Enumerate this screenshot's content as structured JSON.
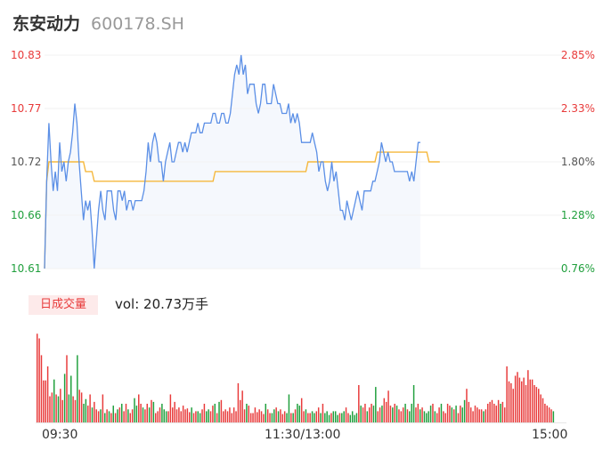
{
  "stock": {
    "name": "东安动力",
    "code": "600178.SH"
  },
  "price_labels_left": [
    "10.83",
    "10.77",
    "10.72",
    "10.66",
    "10.61"
  ],
  "pct_labels_right": [
    "2.85%",
    "2.33%",
    "1.80%",
    "1.28%",
    "0.76%"
  ],
  "volume_tab": "日成交量",
  "volume_text": "vol: 20.73万手",
  "time_labels": [
    "09:30",
    "11:30/13:00",
    "15:00"
  ],
  "colors": {
    "up": "#e83a3a",
    "down": "#1f9f3c",
    "price_line": "#5b8fe6",
    "avg_line": "#f5b83d",
    "area": "#f5f8fd"
  },
  "chart_data": [
    {
      "type": "line",
      "ylim": [
        10.61,
        10.83
      ],
      "xlim": [
        0,
        240
      ],
      "series": [
        {
          "values": [
            10.61,
            10.7,
            10.76,
            10.72,
            10.69,
            10.71,
            10.69,
            10.74,
            10.71,
            10.72,
            10.7,
            10.72,
            10.73,
            10.75,
            10.78,
            10.76,
            10.72,
            10.69,
            10.66,
            10.68,
            10.67,
            10.68,
            10.65,
            10.61,
            10.64,
            10.67,
            10.69,
            10.67,
            10.66,
            10.69,
            10.69,
            10.69,
            10.67,
            10.66,
            10.69,
            10.69,
            10.68,
            10.69,
            10.67,
            10.68,
            10.68,
            10.67,
            10.68,
            10.68,
            10.68,
            10.68,
            10.69,
            10.71,
            10.74,
            10.72,
            10.74,
            10.75,
            10.74,
            10.72,
            10.72,
            10.7,
            10.72,
            10.73,
            10.74,
            10.72,
            10.72,
            10.73,
            10.74,
            10.74,
            10.73,
            10.74,
            10.73,
            10.74,
            10.75,
            10.75,
            10.75,
            10.76,
            10.75,
            10.75,
            10.76,
            10.76,
            10.76,
            10.76,
            10.77,
            10.77,
            10.76,
            10.76,
            10.77,
            10.77,
            10.76,
            10.76,
            10.77,
            10.79,
            10.81,
            10.82,
            10.81,
            10.83,
            10.81,
            10.82,
            10.79,
            10.8,
            10.8,
            10.8,
            10.78,
            10.77,
            10.78,
            10.8,
            10.8,
            10.78,
            10.78,
            10.78,
            10.8,
            10.79,
            10.78,
            10.78,
            10.77,
            10.77,
            10.77,
            10.78,
            10.76,
            10.77,
            10.76,
            10.77,
            10.76,
            10.74,
            10.74,
            10.74,
            10.74,
            10.74,
            10.75,
            10.74,
            10.73,
            10.71,
            10.72,
            10.72,
            10.7,
            10.69,
            10.7,
            10.72,
            10.7,
            10.71,
            10.69,
            10.67,
            10.67,
            10.66,
            10.68,
            10.67,
            10.66,
            10.67,
            10.68,
            10.69,
            10.68,
            10.67,
            10.69,
            10.69,
            10.69,
            10.69,
            10.7,
            10.7,
            10.71,
            10.72,
            10.74,
            10.73,
            10.72,
            10.73,
            10.72,
            10.72,
            10.71,
            10.71,
            10.71,
            10.71,
            10.71,
            10.71,
            10.71,
            10.7,
            10.71,
            10.7,
            10.72,
            10.74,
            10.74
          ]
        },
        {
          "values": [
            10.61,
            10.7,
            10.72,
            10.72,
            10.72,
            10.72,
            10.72,
            10.72,
            10.72,
            10.72,
            10.72,
            10.72,
            10.72,
            10.72,
            10.72,
            10.72,
            10.72,
            10.72,
            10.72,
            10.71,
            10.71,
            10.71,
            10.71,
            10.7,
            10.7,
            10.7,
            10.7,
            10.7,
            10.7,
            10.7,
            10.7,
            10.7,
            10.7,
            10.7,
            10.7,
            10.7,
            10.7,
            10.7,
            10.7,
            10.7,
            10.7,
            10.7,
            10.7,
            10.7,
            10.7,
            10.7,
            10.7,
            10.7,
            10.7,
            10.7,
            10.7,
            10.7,
            10.7,
            10.7,
            10.7,
            10.7,
            10.7,
            10.7,
            10.7,
            10.7,
            10.7,
            10.7,
            10.7,
            10.7,
            10.7,
            10.7,
            10.7,
            10.7,
            10.7,
            10.7,
            10.7,
            10.7,
            10.7,
            10.7,
            10.7,
            10.7,
            10.7,
            10.7,
            10.7,
            10.71,
            10.71,
            10.71,
            10.71,
            10.71,
            10.71,
            10.71,
            10.71,
            10.71,
            10.71,
            10.71,
            10.71,
            10.71,
            10.71,
            10.71,
            10.71,
            10.71,
            10.71,
            10.71,
            10.71,
            10.71,
            10.71,
            10.71,
            10.71,
            10.71,
            10.71,
            10.71,
            10.71,
            10.71,
            10.71,
            10.71,
            10.71,
            10.71,
            10.71,
            10.71,
            10.71,
            10.71,
            10.71,
            10.71,
            10.71,
            10.71,
            10.71,
            10.71,
            10.72,
            10.72,
            10.72,
            10.72,
            10.72,
            10.72,
            10.72,
            10.72,
            10.72,
            10.72,
            10.72,
            10.72,
            10.72,
            10.72,
            10.72,
            10.72,
            10.72,
            10.72,
            10.72,
            10.72,
            10.72,
            10.72,
            10.72,
            10.72,
            10.72,
            10.72,
            10.72,
            10.72,
            10.72,
            10.72,
            10.72,
            10.72,
            10.73,
            10.73,
            10.73,
            10.73,
            10.73,
            10.73,
            10.73,
            10.73,
            10.73,
            10.73,
            10.73,
            10.73,
            10.73,
            10.73,
            10.73,
            10.73,
            10.73,
            10.73,
            10.73,
            10.73,
            10.73,
            10.73,
            10.73,
            10.73,
            10.72,
            10.72,
            10.72,
            10.72,
            10.72,
            10.72
          ]
        }
      ]
    },
    {
      "type": "bar",
      "xlim": [
        0,
        240
      ],
      "ylim": [
        0,
        100
      ],
      "volumes": [
        95,
        90,
        72,
        45,
        45,
        60,
        28,
        32,
        46,
        30,
        28,
        36,
        24,
        52,
        72,
        30,
        50,
        28,
        24,
        72,
        35,
        32,
        20,
        25,
        18,
        30,
        16,
        22,
        14,
        12,
        14,
        30,
        10,
        14,
        12,
        10,
        18,
        10,
        14,
        16,
        20,
        12,
        20,
        14,
        10,
        14,
        26,
        18,
        30,
        20,
        16,
        14,
        20,
        16,
        24,
        22,
        10,
        12,
        16,
        20,
        14,
        12,
        12,
        30,
        16,
        22,
        14,
        16,
        12,
        18,
        14,
        15,
        11,
        16,
        10,
        12,
        12,
        10,
        14,
        20,
        12,
        14,
        12,
        18,
        20,
        10,
        22,
        24,
        12,
        14,
        12,
        16,
        10,
        16,
        12,
        42,
        24,
        34,
        14,
        20,
        18,
        10,
        10,
        16,
        11,
        14,
        12,
        9,
        20,
        14,
        10,
        10,
        14,
        16,
        12,
        14,
        9,
        12,
        10,
        30,
        10,
        10,
        14,
        20,
        18,
        26,
        12,
        14,
        10,
        10,
        12,
        10,
        12,
        16,
        10,
        20,
        10,
        12,
        8,
        10,
        12,
        12,
        8,
        10,
        10,
        12,
        16,
        10,
        8,
        12,
        8,
        10,
        40,
        18,
        16,
        20,
        12,
        16,
        20,
        18,
        38,
        12,
        16,
        18,
        26,
        22,
        34,
        18,
        16,
        20,
        18,
        14,
        12,
        16,
        20,
        14,
        12,
        20,
        40,
        16,
        20,
        14,
        16,
        12,
        10,
        12,
        18,
        20,
        12,
        10,
        16,
        20,
        12,
        10,
        20,
        18,
        16,
        14,
        18,
        10,
        18,
        16,
        24,
        36,
        22,
        16,
        12,
        18,
        16,
        14,
        14,
        12,
        14,
        20,
        22,
        24,
        20,
        18,
        24,
        20,
        22,
        16,
        60,
        44,
        42,
        36,
        50,
        54,
        48,
        44,
        48,
        40,
        56,
        46,
        46,
        40,
        38,
        36,
        30,
        26,
        20,
        18,
        16,
        14,
        12
      ],
      "up": [
        1,
        1,
        1,
        1,
        1,
        1,
        1,
        1,
        0,
        1,
        0,
        1,
        1,
        0,
        1,
        0,
        0,
        1,
        1,
        0,
        1,
        1,
        0,
        0,
        1,
        1,
        0,
        1,
        1,
        1,
        0,
        1,
        0,
        1,
        0,
        1,
        0,
        1,
        0,
        1,
        0,
        1,
        1,
        0,
        1,
        1,
        0,
        0,
        1,
        1,
        0,
        1,
        1,
        0,
        1,
        0,
        1,
        1,
        1,
        0,
        0,
        0,
        1,
        1,
        1,
        1,
        1,
        1,
        1,
        1,
        1,
        1,
        1,
        0,
        1,
        1,
        0,
        0,
        1,
        1,
        0,
        0,
        1,
        1,
        0,
        1,
        0,
        1,
        1,
        1,
        1,
        1,
        1,
        1,
        1,
        1,
        1,
        1,
        1,
        0,
        1,
        1,
        1,
        1,
        1,
        1,
        1,
        1,
        0,
        1,
        1,
        0,
        0,
        1,
        0,
        1,
        1,
        1,
        0,
        0,
        1,
        0,
        1,
        0,
        0,
        1,
        1,
        0,
        1,
        1,
        0,
        0,
        1,
        1,
        0,
        1,
        0,
        0,
        0,
        1,
        0,
        0,
        0,
        1,
        0,
        0,
        1,
        1,
        0,
        0,
        0,
        0,
        1,
        0,
        1,
        1,
        0,
        1,
        1,
        0,
        0,
        1,
        1,
        0,
        1,
        1,
        1,
        1,
        0,
        1,
        0,
        1,
        1,
        1,
        0,
        1,
        0,
        0,
        0,
        1,
        1,
        0,
        1,
        0,
        0,
        0,
        0,
        1,
        0,
        1,
        1,
        0,
        1,
        1,
        1,
        1,
        0,
        1,
        0,
        1,
        1,
        0,
        0,
        1,
        1,
        1,
        1,
        1,
        1,
        1,
        1,
        0,
        1,
        1,
        1,
        1,
        1,
        1,
        1,
        0,
        1,
        1,
        1,
        1,
        1,
        1,
        1,
        1,
        1,
        1,
        1,
        1,
        1,
        1,
        1,
        1,
        1,
        1,
        1,
        1,
        1,
        1,
        1,
        1
      ]
    }
  ]
}
